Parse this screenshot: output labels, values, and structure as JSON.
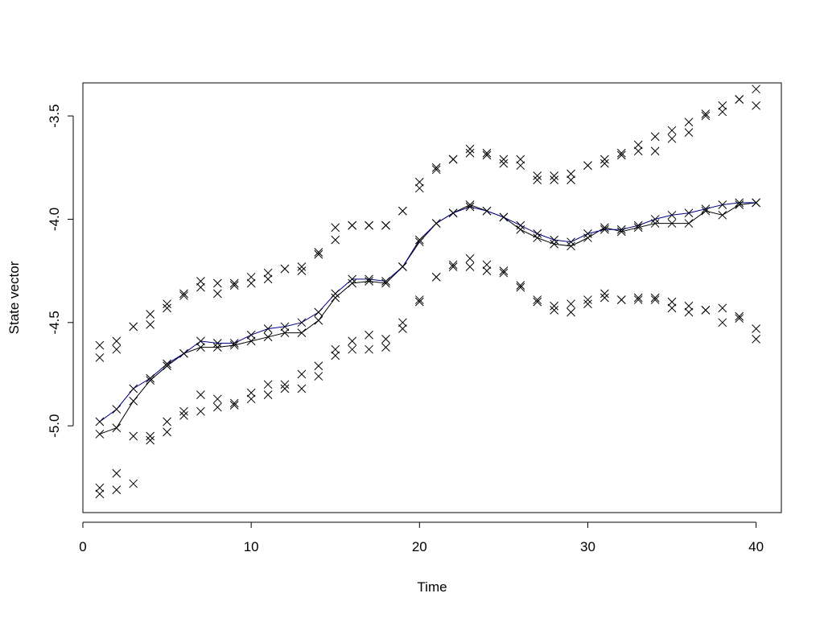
{
  "chart_data": {
    "type": "line",
    "title": "",
    "xlabel": "Time",
    "ylabel": "State vector",
    "xlim": [
      0,
      41.5
    ],
    "ylim": [
      -5.42,
      -3.34
    ],
    "xticks": [
      0,
      10,
      20,
      30,
      40
    ],
    "yticks": [
      -5.0,
      -4.5,
      -4.0,
      -3.5
    ],
    "ytick_labels": [
      "-5.0",
      "-4.5",
      "-4.0",
      "-3.5"
    ],
    "grid": false,
    "legend": "none",
    "x": [
      1,
      2,
      3,
      4,
      5,
      6,
      7,
      8,
      9,
      10,
      11,
      12,
      13,
      14,
      15,
      16,
      17,
      18,
      19,
      20,
      21,
      22,
      23,
      24,
      25,
      26,
      27,
      28,
      29,
      30,
      31,
      32,
      33,
      34,
      35,
      36,
      37,
      38,
      39,
      40
    ],
    "series": [
      {
        "role": "line",
        "color": "#000000",
        "values": [
          -5.04,
          -5.01,
          -4.88,
          -4.78,
          -4.71,
          -4.65,
          -4.62,
          -4.62,
          -4.61,
          -4.59,
          -4.57,
          -4.55,
          -4.55,
          -4.49,
          -4.38,
          -4.31,
          -4.3,
          -4.31,
          -4.23,
          -4.11,
          -4.02,
          -3.97,
          -3.93,
          -3.96,
          -3.99,
          -4.05,
          -4.09,
          -4.12,
          -4.13,
          -4.09,
          -4.04,
          -4.06,
          -4.04,
          -4.02,
          -4.02,
          -4.02,
          -3.96,
          -3.98,
          -3.93,
          -3.92
        ]
      },
      {
        "role": "line",
        "color": "#00008b",
        "values": [
          -4.98,
          -4.92,
          -4.82,
          -4.77,
          -4.7,
          -4.65,
          -4.59,
          -4.6,
          -4.6,
          -4.56,
          -4.53,
          -4.52,
          -4.5,
          -4.45,
          -4.36,
          -4.29,
          -4.29,
          -4.3,
          -4.23,
          -4.1,
          -4.02,
          -3.97,
          -3.94,
          -3.96,
          -3.99,
          -4.03,
          -4.07,
          -4.1,
          -4.11,
          -4.07,
          -4.05,
          -4.05,
          -4.03,
          -4.0,
          -3.98,
          -3.97,
          -3.95,
          -3.93,
          -3.92,
          -3.92
        ]
      },
      {
        "role": "markers",
        "marker": "x",
        "color": "#000000",
        "values": [
          -5.04,
          -5.01,
          -4.88,
          -4.78,
          -4.71,
          -4.65,
          -4.62,
          -4.62,
          -4.61,
          -4.59,
          -4.57,
          -4.55,
          -4.55,
          -4.49,
          -4.38,
          -4.31,
          -4.3,
          -4.31,
          -4.23,
          -4.11,
          -4.02,
          -3.97,
          -3.93,
          -3.96,
          -3.99,
          -4.05,
          -4.09,
          -4.12,
          -4.13,
          -4.09,
          -4.04,
          -4.06,
          -4.04,
          -4.02,
          -4.02,
          -4.02,
          -3.96,
          -3.98,
          -3.93,
          -3.92
        ]
      },
      {
        "role": "markers",
        "marker": "x",
        "color": "#000000",
        "values": [
          -4.98,
          -4.92,
          -4.82,
          -4.77,
          -4.7,
          -4.65,
          -4.59,
          -4.6,
          -4.6,
          -4.56,
          -4.53,
          -4.52,
          -4.5,
          -4.45,
          -4.36,
          -4.29,
          -4.29,
          -4.3,
          -4.23,
          -4.1,
          -4.02,
          -3.97,
          -3.94,
          -3.96,
          -3.99,
          -4.03,
          -4.07,
          -4.1,
          -4.11,
          -4.07,
          -4.05,
          -4.05,
          -4.03,
          -4.0,
          -3.98,
          -3.97,
          -3.95,
          -3.93,
          -3.92,
          -3.92
        ]
      },
      {
        "role": "markers",
        "marker": "x",
        "color": "#000000",
        "values": [
          -4.61,
          -4.59,
          -4.52,
          -4.51,
          -4.43,
          -4.37,
          -4.3,
          -4.31,
          -4.32,
          -4.28,
          -4.26,
          -4.24,
          -4.23,
          -4.17,
          -4.04,
          -4.03,
          -4.03,
          -4.03,
          -3.96,
          -3.82,
          -3.75,
          -3.71,
          -3.66,
          -3.68,
          -3.71,
          -3.71,
          -3.79,
          -3.79,
          -3.78,
          -3.74,
          -3.71,
          -3.68,
          -3.64,
          -3.6,
          -3.57,
          -3.53,
          -3.49,
          -3.45,
          -3.42,
          -3.37
        ]
      },
      {
        "role": "markers",
        "marker": "x",
        "color": "#000000",
        "values": [
          -4.67,
          -4.63,
          -4.52,
          -4.46,
          -4.41,
          -4.36,
          -4.33,
          -4.36,
          -4.31,
          -4.31,
          -4.29,
          -4.24,
          -4.25,
          -4.16,
          -4.1,
          -4.03,
          -4.03,
          -4.03,
          -3.96,
          -3.85,
          -3.76,
          -3.71,
          -3.68,
          -3.69,
          -3.73,
          -3.74,
          -3.81,
          -3.81,
          -3.81,
          -3.74,
          -3.73,
          -3.69,
          -3.67,
          -3.67,
          -3.61,
          -3.58,
          -3.5,
          -3.48,
          -3.42,
          -3.45
        ]
      },
      {
        "role": "markers",
        "marker": "x",
        "color": "#000000",
        "values": [
          -5.3,
          -5.23,
          -5.05,
          -5.05,
          -4.98,
          -4.93,
          -4.85,
          -4.87,
          -4.89,
          -4.84,
          -4.8,
          -4.8,
          -4.75,
          -4.71,
          -4.63,
          -4.59,
          -4.56,
          -4.58,
          -4.5,
          -4.39,
          -4.28,
          -4.22,
          -4.19,
          -4.22,
          -4.25,
          -4.32,
          -4.39,
          -4.42,
          -4.41,
          -4.39,
          -4.36,
          -4.39,
          -4.38,
          -4.38,
          -4.4,
          -4.42,
          -4.44,
          -4.43,
          -4.47,
          -4.53
        ]
      },
      {
        "role": "markers",
        "marker": "x",
        "color": "#000000",
        "values": [
          -5.33,
          -5.31,
          -5.28,
          -5.07,
          -5.03,
          -4.95,
          -4.93,
          -4.91,
          -4.9,
          -4.87,
          -4.85,
          -4.82,
          -4.82,
          -4.76,
          -4.66,
          -4.63,
          -4.63,
          -4.62,
          -4.53,
          -4.4,
          -4.28,
          -4.23,
          -4.23,
          -4.25,
          -4.26,
          -4.33,
          -4.4,
          -4.44,
          -4.45,
          -4.41,
          -4.38,
          -4.39,
          -4.39,
          -4.39,
          -4.43,
          -4.45,
          -4.44,
          -4.5,
          -4.48,
          -4.58
        ]
      }
    ]
  }
}
